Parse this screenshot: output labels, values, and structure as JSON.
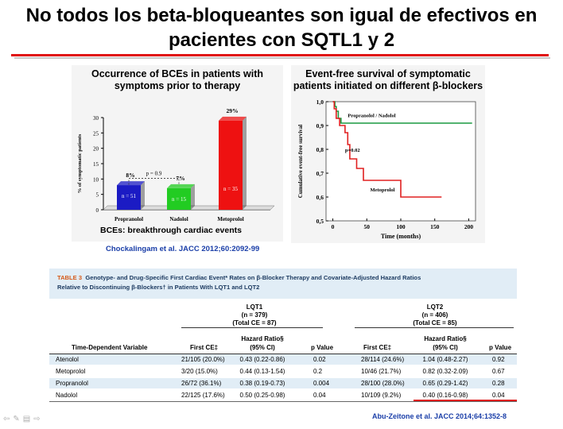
{
  "slide": {
    "title_line1": "No todos los beta-bloqueantes son igual de efectivos en",
    "title_line2": "pacientes con SQTL1 y 2"
  },
  "bar_panel": {
    "title_line1": "Occurrence of BCEs in patients with",
    "title_line2": "symptoms prior to therapy",
    "footer": "BCEs: breakthrough cardiac events",
    "citation": "Chockalingam et al. JACC 2012;60:2092-99",
    "p_label": "p = 0.9"
  },
  "survival_panel": {
    "title_line1": "Event-free survival of symptomatic",
    "title_line2": "patients initiated on different β-blockers",
    "p_label": "p=0.02"
  },
  "chart_data": [
    {
      "type": "bar",
      "title": "Occurrence of BCEs in patients with symptoms prior to therapy",
      "ylabel": "% of symptomatic patients",
      "ylim": [
        0,
        30
      ],
      "yticks": [
        0,
        5,
        10,
        15,
        20,
        25,
        30
      ],
      "categories": [
        "Propranolol",
        "Nadolol",
        "Metoprolol"
      ],
      "values": [
        8,
        7,
        29
      ],
      "value_labels": [
        "8%",
        "7%",
        "29%"
      ],
      "n_labels": [
        "n = 51",
        "n = 15",
        "n = 35"
      ],
      "colors": [
        "#1b1bc4",
        "#22cc22",
        "#ee1111"
      ]
    },
    {
      "type": "line",
      "title": "Event-free survival of symptomatic patients initiated on different β-blockers",
      "xlabel": "Time (months)",
      "ylabel": "Cumulative event-free survival",
      "xlim": [
        -10,
        210
      ],
      "ylim": [
        0.5,
        1.0
      ],
      "xticks": [
        0,
        50,
        100,
        150,
        200
      ],
      "yticks": [
        0.5,
        0.6,
        0.7,
        0.8,
        0.9,
        1.0
      ],
      "ytick_labels": [
        "0,5",
        "0,6",
        "0,7",
        "0,8",
        "0,9",
        "1,0"
      ],
      "series": [
        {
          "name": "Propranolol / Nadolol",
          "color": "#1a9a40",
          "x": [
            0,
            3,
            3,
            5,
            5,
            8,
            8,
            12,
            12,
            205
          ],
          "y": [
            1.0,
            1.0,
            0.98,
            0.98,
            0.96,
            0.96,
            0.93,
            0.93,
            0.91,
            0.91
          ]
        },
        {
          "name": "Metoprolol",
          "color": "#e02020",
          "x": [
            0,
            2,
            2,
            5,
            5,
            10,
            10,
            18,
            18,
            22,
            22,
            25,
            25,
            35,
            35,
            45,
            45,
            100,
            100,
            160
          ],
          "y": [
            1.0,
            1.0,
            0.97,
            0.97,
            0.93,
            0.93,
            0.9,
            0.9,
            0.87,
            0.87,
            0.82,
            0.82,
            0.76,
            0.76,
            0.72,
            0.72,
            0.67,
            0.67,
            0.6,
            0.6
          ]
        }
      ]
    }
  ],
  "table": {
    "caption_label": "TABLE 3",
    "caption_line1": "Genotype- and Drug-Specific First Cardiac Event* Rates on β-Blocker Therapy and Covariate-Adjusted Hazard Ratios",
    "caption_line2": "Relative to Discontinuing β-Blockers† in Patients With LQT1 and LQT2",
    "groups": [
      {
        "name": "LQT1",
        "n": "(n = 379)",
        "total": "(Total CE = 87)"
      },
      {
        "name": "LQT2",
        "n": "(n = 406)",
        "total": "(Total CE = 85)"
      }
    ],
    "headers": {
      "variable": "Time-Dependent Variable",
      "first_ce": "First CE‡",
      "hr_line1": "Hazard Ratio§",
      "hr_line2": "(95% CI)",
      "p": "p Value"
    },
    "rows": [
      {
        "drug": "Atenolol",
        "lqt1_ce": "21/105 (20.0%)",
        "lqt1_hr": "0.43 (0.22-0.86)",
        "lqt1_p": "0.02",
        "lqt2_ce": "28/114 (24.6%)",
        "lqt2_hr": "1.04 (0.48-2.27)",
        "lqt2_p": "0.92"
      },
      {
        "drug": "Metoprolol",
        "lqt1_ce": "3/20 (15.0%)",
        "lqt1_hr": "0.44 (0.13-1.54)",
        "lqt1_p": "0.2",
        "lqt2_ce": "10/46 (21.7%)",
        "lqt2_hr": "0.82 (0.32-2.09)",
        "lqt2_p": "0.67"
      },
      {
        "drug": "Propranolol",
        "lqt1_ce": "26/72 (36.1%)",
        "lqt1_hr": "0.38 (0.19-0.73)",
        "lqt1_p": "0.004",
        "lqt2_ce": "28/100 (28.0%)",
        "lqt2_hr": "0.65 (0.29-1.42)",
        "lqt2_p": "0.28"
      },
      {
        "drug": "Nadolol",
        "lqt1_ce": "22/125 (17.6%)",
        "lqt1_hr": "0.50 (0.25-0.98)",
        "lqt1_p": "0.04",
        "lqt2_ce": "10/109 (9.2%)",
        "lqt2_hr": "0.40 (0.16-0.98)",
        "lqt2_p": "0.04"
      }
    ],
    "citation": "Abu-Zeitone et al. JACC 2014;64:1352-8"
  },
  "nav": {
    "icons": [
      "back-arrow-icon",
      "pen-icon",
      "slide-menu-icon",
      "forward-arrow-icon"
    ]
  }
}
